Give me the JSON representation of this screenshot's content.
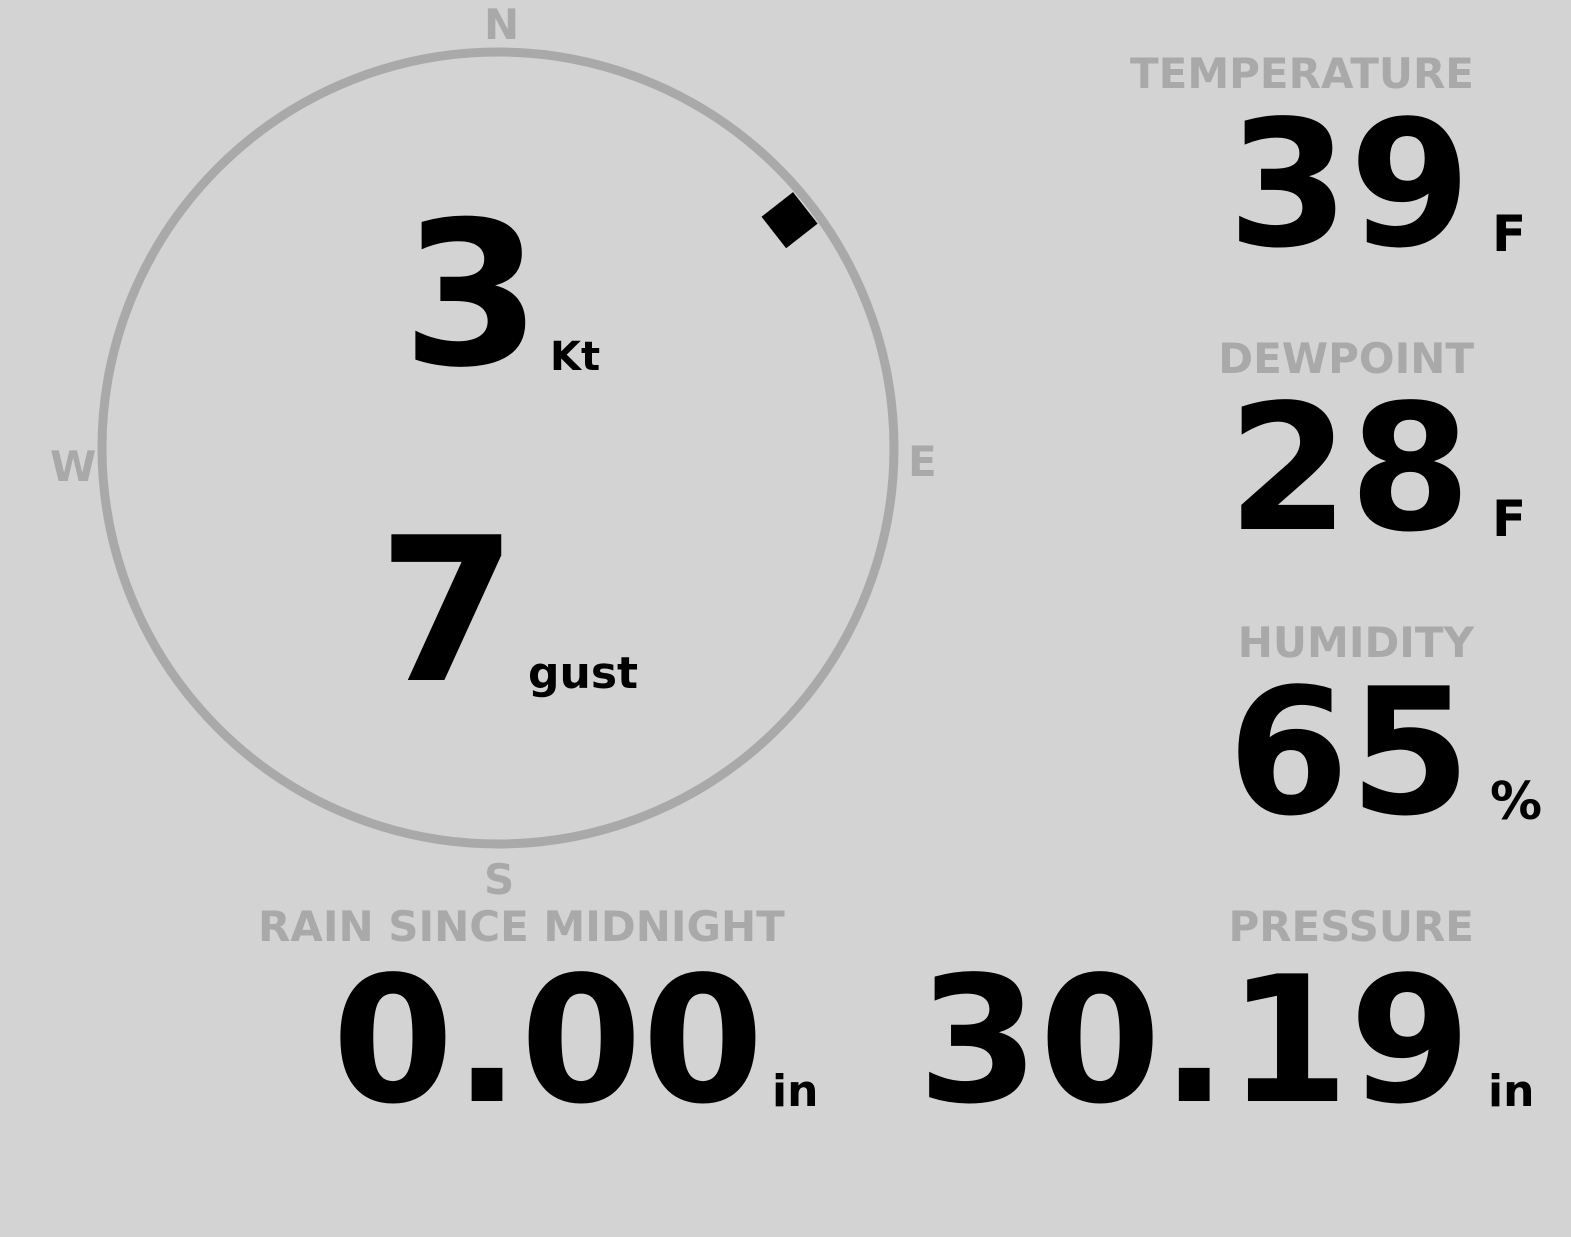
{
  "colors": {
    "background": "#d3d3d3",
    "label": "#a9a9a9",
    "value": "#000000"
  },
  "compass": {
    "n": "N",
    "e": "E",
    "s": "S",
    "w": "W",
    "direction_deg": 52
  },
  "wind": {
    "speed": "3",
    "speed_unit": "Kt",
    "gust": "7",
    "gust_label": "gust"
  },
  "temperature": {
    "label": "TEMPERATURE",
    "value": "39",
    "unit": "F"
  },
  "dewpoint": {
    "label": "DEWPOINT",
    "value": "28",
    "unit": "F"
  },
  "humidity": {
    "label": "HUMIDITY",
    "value": "65",
    "unit": "%"
  },
  "pressure": {
    "label": "PRESSURE",
    "value": "30.19",
    "unit": "in"
  },
  "rain": {
    "label": "RAIN SINCE MIDNIGHT",
    "value": "0.00",
    "unit": "in"
  }
}
